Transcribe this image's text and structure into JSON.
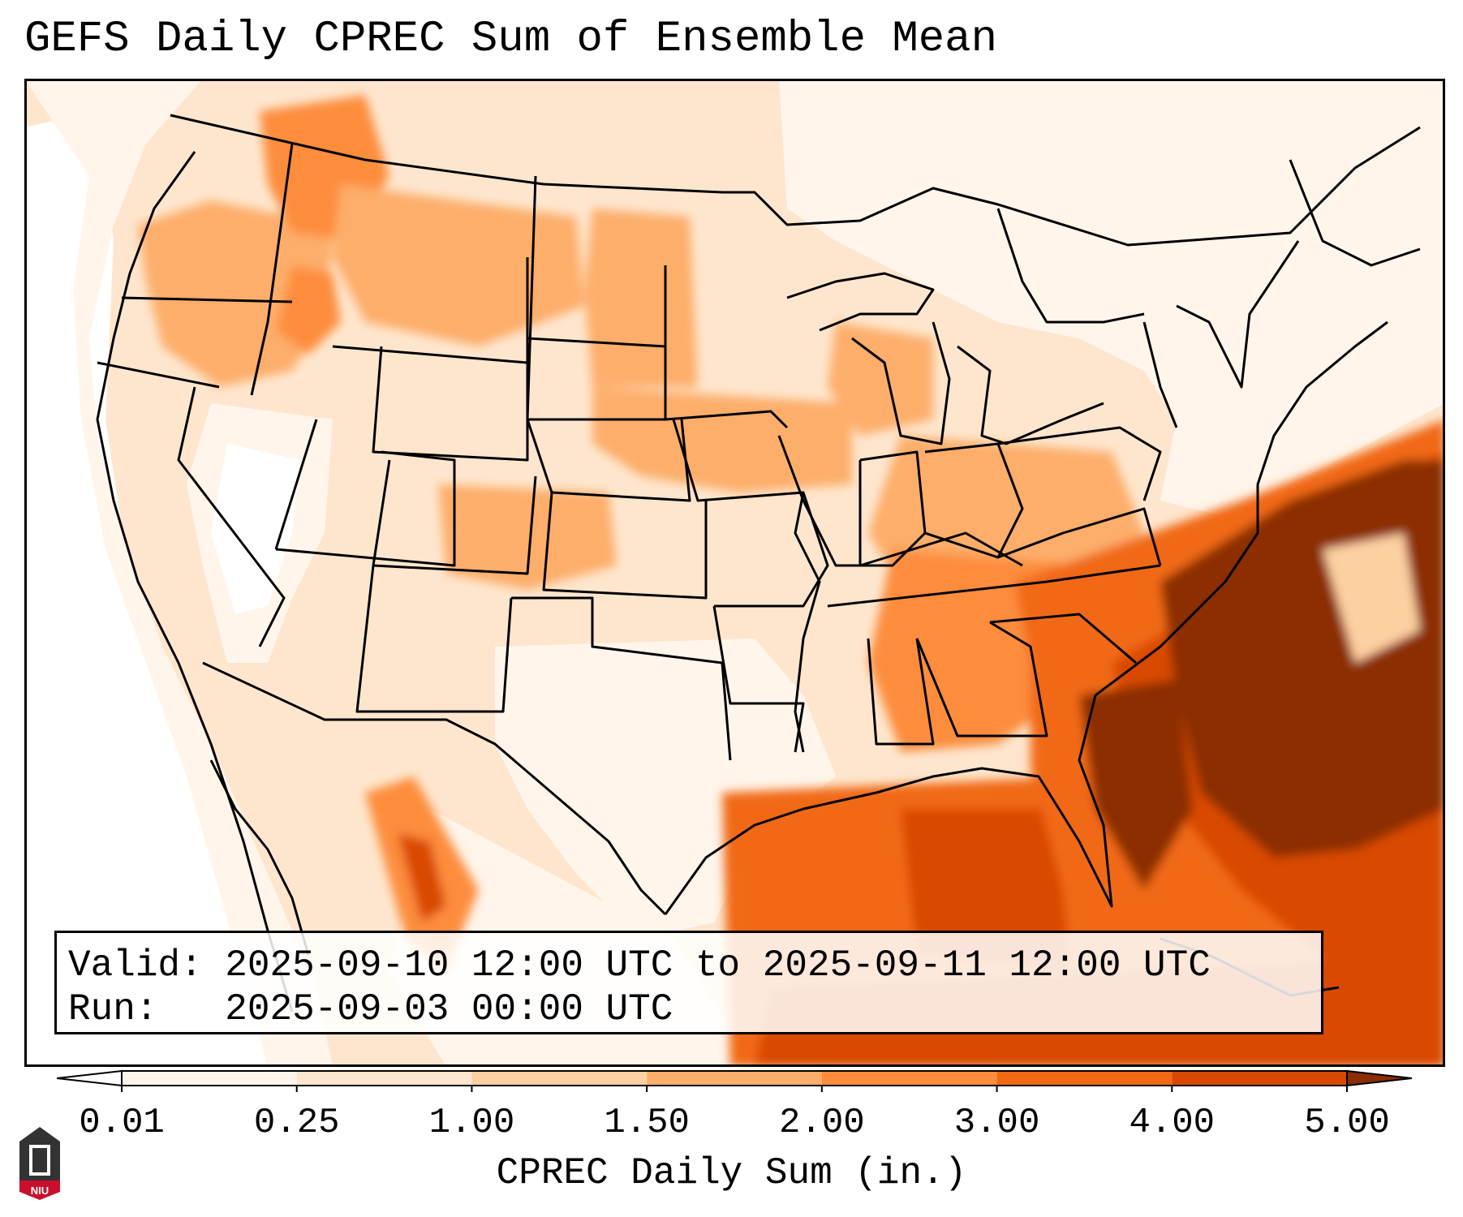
{
  "title": "GEFS Daily CPREC Sum of Ensemble Mean",
  "valid_box": {
    "valid_label": "Valid:",
    "valid_text": "2025-09-10 12:00 UTC to 2025-09-11 12:00 UTC",
    "run_label": "Run:",
    "run_text": "2025-09-03 00:00 UTC"
  },
  "colorbar": {
    "label": "CPREC Daily Sum (in.)",
    "ticks": [
      "0.01",
      "0.25",
      "1.00",
      "1.50",
      "2.00",
      "3.00",
      "4.00",
      "5.00"
    ],
    "colors": [
      "#fff5eb",
      "#fee6ce",
      "#fdd0a2",
      "#fdae6b",
      "#fd8d3c",
      "#f16913",
      "#d94801",
      "#8c2d04"
    ],
    "under_color": "#ffffff",
    "over_color": "#8c2d04"
  },
  "logo": {
    "text": "NIU"
  },
  "map": {
    "region": "Contiguous United States",
    "background_color": "#fff5eb",
    "heavy_precip_region": "Southeast US coast and western Atlantic"
  }
}
